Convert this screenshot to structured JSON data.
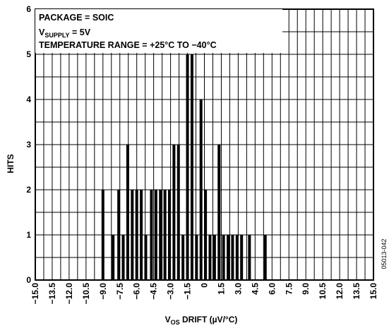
{
  "chart_data": {
    "type": "bar",
    "xlabel": {
      "main": "V",
      "sub": "OS",
      "rest": " DRIFT (µV/°C)"
    },
    "ylabel": "HITS",
    "xlim": [
      -15.0,
      15.0
    ],
    "ylim": [
      0,
      6
    ],
    "x_ticks": [
      "−15.0",
      "−13.5",
      "−12.0",
      "−10.5",
      "−9.0",
      "−7.5",
      "−6.0",
      "−4.5",
      "−3.0",
      "−1.5",
      "0",
      "1.5",
      "3.0",
      "4.5",
      "6.0",
      "7.5",
      "9.0",
      "10.5",
      "12.0",
      "13.5",
      "15.0"
    ],
    "x_tick_values": [
      -15.0,
      -13.5,
      -12.0,
      -10.5,
      -9.0,
      -7.5,
      -6.0,
      -4.5,
      -3.0,
      -1.5,
      0,
      1.5,
      3.0,
      4.5,
      6.0,
      7.5,
      9.0,
      10.5,
      12.0,
      13.5,
      15.0
    ],
    "y_ticks": [
      "0",
      "1",
      "2",
      "3",
      "4",
      "5",
      "6"
    ],
    "grid": true,
    "annotations": {
      "line1": "PACKAGE = SOIC",
      "line2_main": "V",
      "line2_sub": "SUPPLY",
      "line2_rest": " = 5V",
      "line3": "TEMPERATURE RANGE = +25°C TO −40°C"
    },
    "figure_code": "05013-042",
    "x": [
      -9.0,
      -8.1,
      -7.6,
      -7.2,
      -6.8,
      -6.4,
      -6.0,
      -5.6,
      -5.2,
      -4.7,
      -4.3,
      -3.9,
      -3.5,
      -3.1,
      -2.7,
      -2.3,
      -1.9,
      -1.5,
      -1.1,
      -0.7,
      -0.3,
      0.1,
      0.5,
      0.9,
      1.3,
      1.7,
      2.1,
      2.5,
      2.9,
      3.3,
      4.0,
      5.4
    ],
    "values": [
      2,
      1,
      2,
      1,
      3,
      2,
      2,
      2,
      1,
      2,
      2,
      2,
      2,
      2,
      3,
      3,
      1,
      5,
      5,
      1,
      4,
      2,
      1,
      1,
      3,
      1,
      1,
      1,
      1,
      1,
      1,
      1
    ]
  }
}
